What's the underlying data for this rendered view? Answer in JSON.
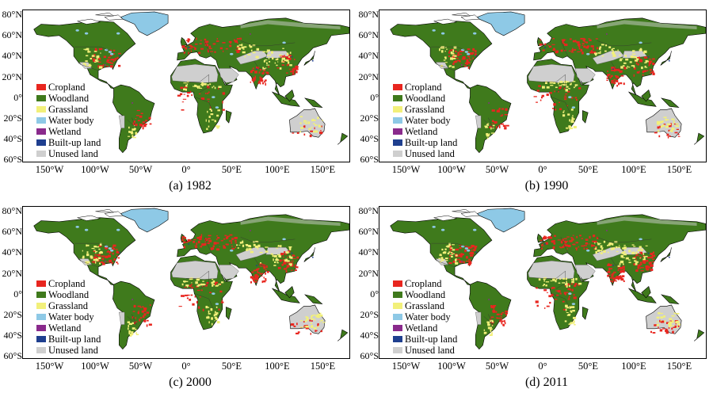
{
  "panels": [
    {
      "caption": "(a) 1982",
      "variant": 0
    },
    {
      "caption": "(b) 1990",
      "variant": 1
    },
    {
      "caption": "(c) 2000",
      "variant": 2
    },
    {
      "caption": "(d) 2011",
      "variant": 3
    }
  ],
  "lat_labels": [
    "80°N",
    "60°N",
    "40°N",
    "20°N",
    "0°",
    "20°S",
    "40°S",
    "60°S"
  ],
  "lon_labels": [
    "150°W",
    "100°W",
    "50°W",
    "0°",
    "50°E",
    "100°E",
    "150°E"
  ],
  "legend": [
    {
      "label": "Cropland",
      "color": "#e8261f"
    },
    {
      "label": "Woodland",
      "color": "#3f7a1c"
    },
    {
      "label": "Grassland",
      "color": "#f2f07a"
    },
    {
      "label": "Water body",
      "color": "#8ec9e6"
    },
    {
      "label": "Wetland",
      "color": "#8a2a8c"
    },
    {
      "label": "Built-up land",
      "color": "#1f3f8f"
    },
    {
      "label": "Unused land",
      "color": "#cfcfcf"
    }
  ],
  "colors": {
    "cropland": "#e8261f",
    "woodland": "#3f7a1c",
    "grassland": "#f2f07a",
    "water": "#8ec9e6",
    "wetland": "#8a2a8c",
    "builtup": "#1f3f8f",
    "unused": "#cfcfcf"
  }
}
